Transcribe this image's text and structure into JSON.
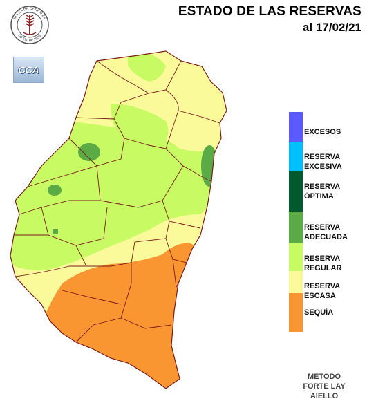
{
  "header": {
    "title": "ESTADO DE LAS RESERVAS",
    "date": "al 17/02/21"
  },
  "logos": {
    "seal_text_top": "BOLSA DE CEREALES",
    "seal_text_bottom": "DE ENTRE RIOS",
    "badge": "CCA"
  },
  "legend": {
    "items": [
      {
        "label": "EXCESOS",
        "color": "#5a5aff"
      },
      {
        "label": "RESERVA\nEXCESIVA",
        "color": "#00bfff"
      },
      {
        "label": "RESERVA\nÓPTIMA",
        "color": "#005a2e"
      },
      {
        "label": "RESERVA\nADECUADA",
        "color": "#5aaa46"
      },
      {
        "label": "RESERVA\nREGULAR",
        "color": "#c8fa64"
      },
      {
        "label": "RESERVA\nESCASA",
        "color": "#fafa9b"
      },
      {
        "label": "SEQUÍA",
        "color": "#fa9632"
      }
    ]
  },
  "footer": {
    "method": "METODO\nFORTE LAY\nAIELLO"
  }
}
